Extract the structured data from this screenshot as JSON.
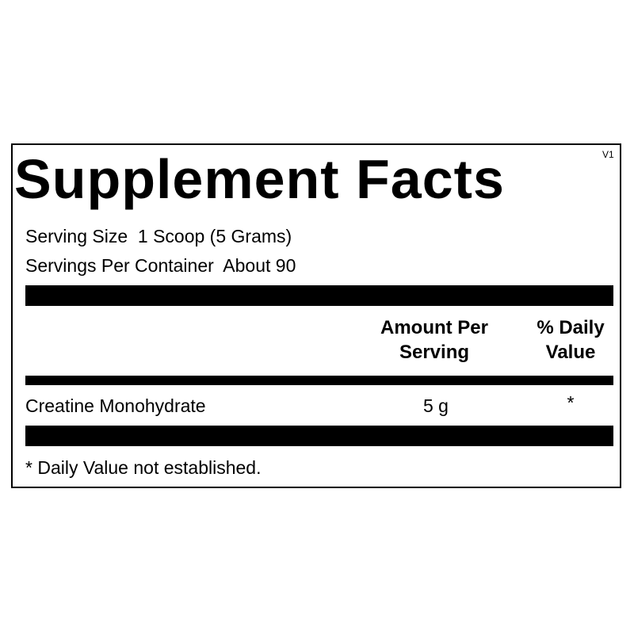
{
  "title": "Supplement Facts",
  "version": "V1",
  "serving_size": "Serving Size  1 Scoop (5 Grams)",
  "servings_per_container": "Servings Per Container  About 90",
  "columns": {
    "amount": "Amount Per Serving",
    "dv": "% Daily Value"
  },
  "rows": [
    {
      "name": "Creatine Monohydrate",
      "amount": "5 g",
      "dv": "*"
    }
  ],
  "footnote": "* Daily Value not established."
}
